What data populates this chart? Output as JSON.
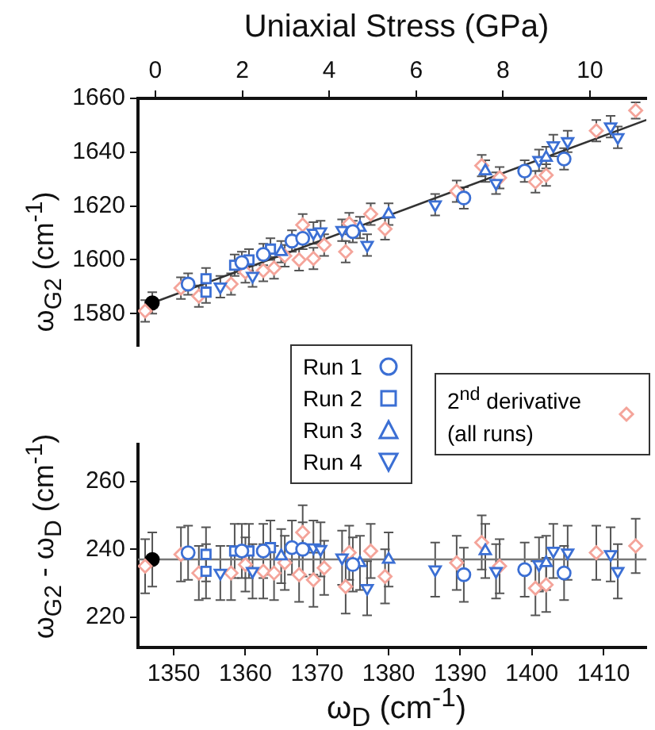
{
  "chart_data": [
    {
      "type": "scatter",
      "x2label": "Uniaxial Stress (GPa)",
      "ylabel": "ω$_{G2}$ (cm$^{-1}$)",
      "xlim": [
        1345,
        1416
      ],
      "x2lim": [
        -0.4,
        11.3
      ],
      "x2ticks": [
        0,
        2,
        4,
        6,
        8,
        10
      ],
      "ylim": [
        1568,
        1660
      ],
      "yticks": [
        1580,
        1600,
        1620,
        1640,
        1660
      ],
      "tick_labels": "y",
      "legend": "bottom",
      "series": [
        {
          "type": "line",
          "color": "#333333",
          "marker": "none",
          "x": [
            1347,
            1416
          ],
          "values": [
            1584,
            1652
          ]
        },
        {
          "name": "Run 1",
          "color": "#3b6fd4",
          "marker": "circle",
          "x": [
            1352,
            1359.5,
            1362.5,
            1366.5,
            1368,
            1375,
            1390.5,
            1399,
            1404.5
          ],
          "values": [
            1591,
            1599,
            1602,
            1607,
            1608,
            1610.5,
            1623,
            1633,
            1637.5
          ],
          "errors": [
            4,
            4,
            4,
            4,
            4,
            4,
            4,
            4,
            4
          ]
        },
        {
          "name": "Run 2",
          "color": "#3b6fd4",
          "marker": "square",
          "x": [
            1354.5,
            1354.5,
            1358.5,
            1360.5,
            1363.5
          ],
          "values": [
            1593,
            1588,
            1598,
            1600,
            1604
          ],
          "errors": [
            4,
            4,
            4,
            4,
            4
          ]
        },
        {
          "name": "Run 3",
          "color": "#3b6fd4",
          "marker": "triangle",
          "x": [
            1365,
            1376,
            1380,
            1393.5,
            1402
          ],
          "values": [
            1603,
            1612,
            1617,
            1633,
            1638
          ],
          "errors": [
            4,
            4,
            4,
            4,
            4
          ]
        },
        {
          "name": "Run 4",
          "color": "#3b6fd4",
          "marker": "triangle-down",
          "x": [
            1356.5,
            1361,
            1369.5,
            1370.5,
            1373.5,
            1377,
            1386.5,
            1395,
            1401,
            1403,
            1405,
            1411,
            1412
          ],
          "values": [
            1590,
            1594,
            1610,
            1610.5,
            1611,
            1605.5,
            1620.5,
            1628.5,
            1637,
            1642.5,
            1644,
            1649.5,
            1645.5
          ],
          "errors": [
            4,
            4,
            4,
            4,
            4,
            4,
            4,
            4,
            4,
            4,
            4,
            4,
            4
          ]
        },
        {
          "name": "2$^{nd}$ derivative (all runs)",
          "color": "#f4a49a",
          "marker": "diamond",
          "x": [
            1346,
            1351,
            1353.5,
            1358,
            1360,
            1362.5,
            1364,
            1365.5,
            1367.5,
            1368,
            1369.5,
            1371,
            1374,
            1374.5,
            1377.5,
            1379.5,
            1389.5,
            1393,
            1395.5,
            1400.5,
            1402,
            1409,
            1414.5
          ],
          "values": [
            1581,
            1589.5,
            1586.5,
            1591,
            1595.5,
            1596,
            1597,
            1601.5,
            1600,
            1613,
            1600.5,
            1605.5,
            1603,
            1613.5,
            1617,
            1611.5,
            1625.5,
            1635,
            1630.5,
            1629,
            1631.5,
            1648,
            1655.5
          ],
          "errors": [
            4,
            4,
            4,
            4,
            4,
            4,
            4,
            4,
            4,
            4,
            4,
            4,
            4,
            4,
            4,
            4,
            4,
            4,
            4,
            4,
            4,
            4,
            3
          ]
        },
        {
          "color": "#000000",
          "marker": "circle",
          "x": [
            1347
          ],
          "values": [
            1584
          ],
          "errors": [
            4
          ]
        }
      ]
    },
    {
      "type": "scatter",
      "xlabel": "ω$_{D}$ (cm$^{-1}$)",
      "ylabel": "ω$_{G2}$ - ω$_{D}$ (cm$^{-1}$)",
      "xlim": [
        1345,
        1416
      ],
      "xticks": [
        1350,
        1360,
        1370,
        1380,
        1390,
        1400,
        1410
      ],
      "ylim": [
        211,
        271
      ],
      "yticks": [
        220,
        240,
        260
      ],
      "ref_lines": [
        {
          "axis": "y",
          "value": 237,
          "color": "#777777"
        }
      ],
      "series": [
        {
          "color": "#3b6fd4",
          "marker": "circle",
          "x": [
            1352,
            1359.5,
            1362.5,
            1366.5,
            1368,
            1375,
            1390.5,
            1399,
            1404.5
          ],
          "values": [
            239,
            239.5,
            239.5,
            240.5,
            240,
            235.5,
            232.5,
            234,
            233
          ],
          "errors": [
            8,
            8,
            8,
            8,
            8,
            8,
            8,
            8,
            8
          ]
        },
        {
          "color": "#3b6fd4",
          "marker": "square",
          "x": [
            1354.5,
            1354.5,
            1358.5,
            1360.5,
            1363.5
          ],
          "values": [
            238.5,
            233.5,
            239.5,
            239.5,
            240.5
          ],
          "errors": [
            8,
            8,
            8,
            8,
            8
          ]
        },
        {
          "color": "#3b6fd4",
          "marker": "triangle",
          "x": [
            1365,
            1376,
            1380,
            1393.5,
            1402
          ],
          "values": [
            238,
            236,
            237,
            239.5,
            236
          ],
          "errors": [
            8,
            8,
            8,
            8,
            8
          ]
        },
        {
          "color": "#3b6fd4",
          "marker": "triangle-down",
          "x": [
            1356.5,
            1361,
            1369.5,
            1370.5,
            1373.5,
            1377,
            1386.5,
            1395,
            1401,
            1403,
            1405,
            1411,
            1412
          ],
          "values": [
            233,
            233.5,
            240.5,
            240,
            237.5,
            228.5,
            234,
            233.5,
            235.5,
            239.5,
            239,
            238.5,
            233.5
          ],
          "errors": [
            8,
            8,
            8,
            8,
            8,
            8,
            8,
            8,
            8,
            8,
            8,
            8,
            8
          ]
        },
        {
          "color": "#f4a49a",
          "marker": "diamond",
          "x": [
            1346,
            1351,
            1353.5,
            1358,
            1360,
            1362.5,
            1364,
            1365.5,
            1367.5,
            1368,
            1369.5,
            1371,
            1374,
            1374.5,
            1377.5,
            1379.5,
            1389.5,
            1393,
            1395.5,
            1400.5,
            1402,
            1409,
            1414.5
          ],
          "values": [
            235,
            238.5,
            233,
            233,
            235.5,
            233.5,
            233,
            236,
            232.5,
            245,
            231,
            234.5,
            229,
            239,
            239.5,
            232,
            236,
            242,
            235,
            228.5,
            229.5,
            239,
            241
          ],
          "errors": [
            8,
            8,
            8,
            8,
            8,
            8,
            8,
            8,
            8,
            8,
            8,
            8,
            8,
            8,
            8,
            8,
            8,
            8,
            8,
            8,
            8,
            8,
            8
          ]
        },
        {
          "color": "#000000",
          "marker": "circle",
          "x": [
            1347
          ],
          "values": [
            237
          ],
          "errors": [
            8
          ]
        }
      ]
    }
  ]
}
